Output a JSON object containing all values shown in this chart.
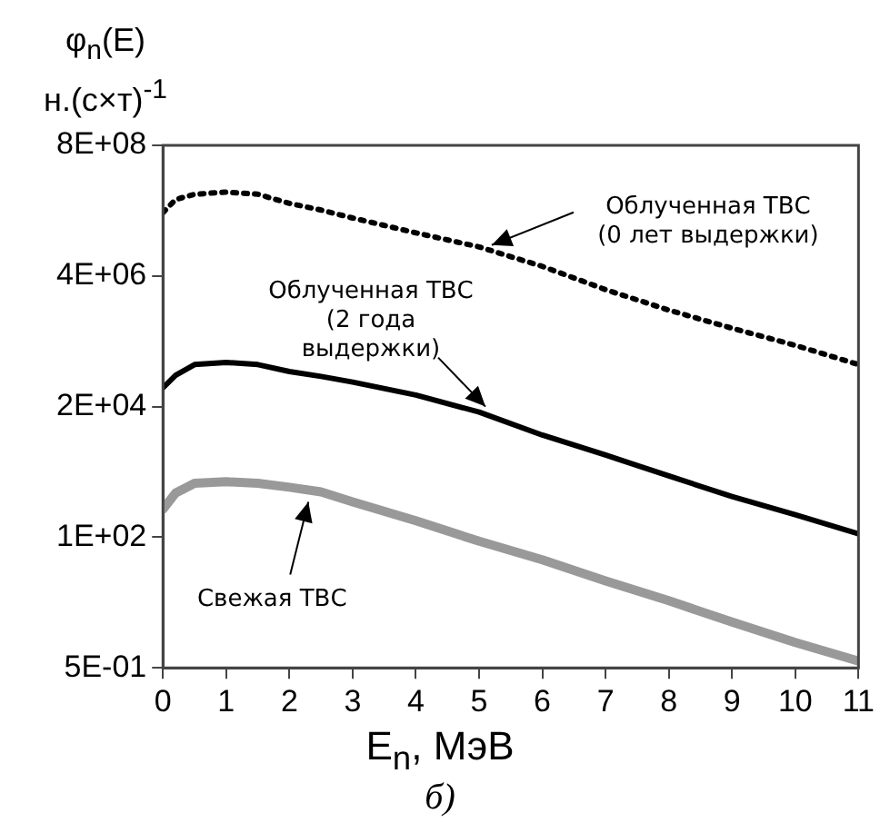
{
  "chart_data": {
    "type": "line",
    "xlabel": "E$_{n}$, МэВ",
    "ylabel": "φ$_{n}$(E) н.(с×т)$^{-1}$",
    "x": [
      0,
      0.2,
      0.5,
      1,
      1.5,
      2,
      2.5,
      3,
      4,
      5,
      6,
      7,
      8,
      9,
      10,
      11
    ],
    "series": [
      {
        "color": "#000000",
        "line_style": "dotted",
        "values": [
          52000000,
          89000000,
          110000000,
          120000000,
          110000000,
          76000000,
          58000000,
          42000000,
          23000000,
          13000000,
          5900000,
          2300000,
          1000000,
          480000,
          240000,
          110000
        ]
      },
      {
        "color": "#000000",
        "line_style": "solid",
        "values": [
          43000,
          71000,
          110000,
          120000,
          110000,
          83000,
          68000,
          54000,
          32000,
          16000,
          6300,
          2800,
          1200,
          520,
          250,
          115
        ]
      },
      {
        "color": "#999999",
        "line_style": "solid",
        "values": [
          310,
          600,
          890,
          950,
          890,
          760,
          630,
          420,
          195,
          85,
          40,
          17,
          7.6,
          3.2,
          1.4,
          0.66
        ]
      }
    ],
    "log": "y",
    "xlim": [
      0,
      11
    ],
    "xticks": [
      0,
      1,
      2,
      3,
      4,
      5,
      6,
      7,
      8,
      9,
      10,
      11
    ],
    "ylim": [
      0.5,
      800000000
    ],
    "yticks": [
      {
        "value": 0.5,
        "label": "5E-01"
      },
      {
        "value": 100,
        "label": "1E+02"
      },
      {
        "value": 20000,
        "label": "2E+04"
      },
      {
        "value": 4000000,
        "label": "4E+06"
      },
      {
        "value": 800000000,
        "label": "8E+08"
      }
    ],
    "grid": false,
    "legend": false,
    "marker": "none",
    "annotations": [
      {
        "text": "Облученная ТВС (0 лет выдержки)",
        "x": 5.2,
        "y": 14000000
      },
      {
        "text": "Облученная ТВС (2 года выдержки)",
        "x": 5.1,
        "y": 20000
      },
      {
        "text": "Свежая ТВС",
        "x": 2.3,
        "y": 420
      },
      "б)"
    ]
  }
}
